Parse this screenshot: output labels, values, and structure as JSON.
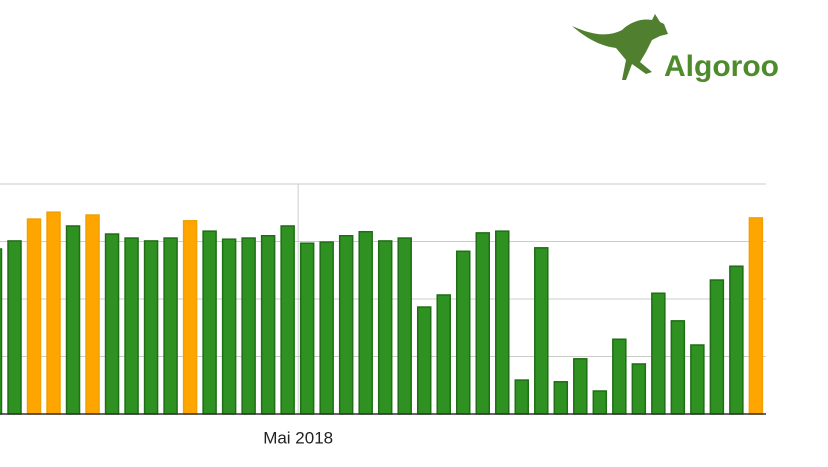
{
  "logo": "Algoroo",
  "chart_data": {
    "type": "bar",
    "categories": [
      null,
      null,
      null,
      null,
      null,
      null,
      null,
      null,
      null,
      null,
      null,
      null,
      null,
      null,
      null,
      null,
      "Mai 2018",
      null,
      null,
      null,
      null,
      null,
      null,
      null,
      null,
      null,
      null,
      null,
      null,
      null,
      null,
      null,
      null,
      null,
      null,
      null,
      null,
      null,
      null,
      null
    ],
    "values": [
      2.87,
      3.01,
      3.39,
      3.51,
      3.27,
      3.46,
      3.13,
      3.06,
      3.01,
      3.06,
      3.36,
      3.18,
      3.04,
      3.06,
      3.1,
      3.27,
      2.97,
      2.99,
      3.1,
      3.17,
      3.01,
      3.06,
      1.86,
      2.07,
      2.83,
      3.15,
      3.18,
      0.59,
      2.89,
      0.56,
      0.96,
      0.4,
      1.3,
      0.87,
      2.1,
      1.62,
      1.2,
      2.33,
      2.57,
      3.41
    ],
    "colors": [
      "#2f9121",
      "#2f9121",
      "#ffa500",
      "#ffa500",
      "#2f9121",
      "#ffa500",
      "#2f9121",
      "#2f9121",
      "#2f9121",
      "#2f9121",
      "#ffa500",
      "#2f9121",
      "#2f9121",
      "#2f9121",
      "#2f9121",
      "#2f9121",
      "#2f9121",
      "#2f9121",
      "#2f9121",
      "#2f9121",
      "#2f9121",
      "#2f9121",
      "#2f9121",
      "#2f9121",
      "#2f9121",
      "#2f9121",
      "#2f9121",
      "#2f9121",
      "#2f9121",
      "#2f9121",
      "#2f9121",
      "#2f9121",
      "#2f9121",
      "#2f9121",
      "#2f9121",
      "#2f9121",
      "#2f9121",
      "#2f9121",
      "#2f9121",
      "#ffa500"
    ],
    "ylim": [
      0,
      4
    ],
    "grid_lines": [
      1,
      2,
      3,
      4
    ],
    "grid": true
  }
}
